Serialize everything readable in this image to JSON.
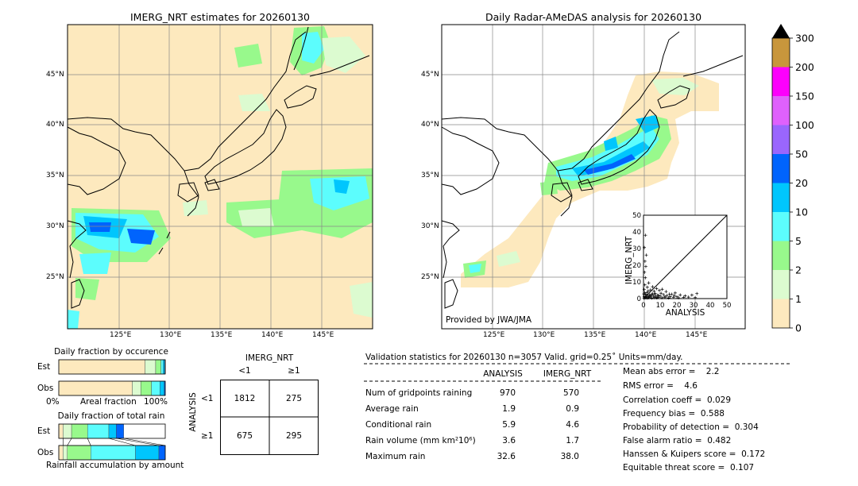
{
  "left_map": {
    "title": "IMERG_NRT estimates for 20260130",
    "lat_labels": [
      "45°N",
      "40°N",
      "35°N",
      "30°N",
      "25°N"
    ],
    "lon_labels": [
      "125°E",
      "130°E",
      "135°E",
      "140°E",
      "145°E"
    ]
  },
  "right_map": {
    "title": "Daily Radar-AMeDAS analysis for 20260130",
    "lat_labels": [
      "45°N",
      "40°N",
      "35°N",
      "30°N",
      "25°N"
    ],
    "lon_labels": [
      "125°E",
      "130°E",
      "135°E",
      "140°E",
      "145°E"
    ],
    "credit": "Provided by JWA/JMA"
  },
  "colorbar": {
    "levels": [
      "0",
      "1",
      "2",
      "5",
      "10",
      "20",
      "50",
      "100",
      "150",
      "200",
      "300"
    ],
    "colors": [
      "#fde9be",
      "#dcfbd0",
      "#98f98c",
      "#5cfdfd",
      "#00c6fd",
      "#0064fd",
      "#9a66fd",
      "#df61fc",
      "#fc00fc",
      "#c8963c"
    ]
  },
  "scatter": {
    "xlabel": "ANALYSIS",
    "ylabel": "IMERG_NRT",
    "ticks": [
      "0",
      "10",
      "20",
      "30",
      "40",
      "50"
    ]
  },
  "fraction_occurrence": {
    "title": "Daily fraction by occurence",
    "rows": [
      "Est",
      "Obs"
    ],
    "axis_left": "0%",
    "axis_mid": "Areal fraction",
    "axis_right": "100%"
  },
  "fraction_rain": {
    "title": "Daily fraction of total rain",
    "rows": [
      "Est",
      "Obs"
    ],
    "footer": "Rainfall accumulation by amount"
  },
  "contingency": {
    "col_title": "IMERG_NRT",
    "col_labels": [
      "<1",
      "≥1"
    ],
    "row_title": "ANALYSIS",
    "row_labels": [
      "<1",
      "≥1"
    ],
    "cells": [
      [
        "1812",
        "275"
      ],
      [
        "675",
        "295"
      ]
    ]
  },
  "validation": {
    "header": "Validation statistics for 20260130  n=3057 Valid. grid=0.25˚ Units=mm/day.",
    "col_headers": [
      "ANALYSIS",
      "IMERG_NRT"
    ],
    "rows": [
      {
        "label": "Num of gridpoints raining",
        "analysis": "970",
        "imerg": "570"
      },
      {
        "label": "Average rain",
        "analysis": "1.9",
        "imerg": "0.9"
      },
      {
        "label": "Conditional rain",
        "analysis": "5.9",
        "imerg": "4.6"
      },
      {
        "label": "Rain volume (mm km²10⁶)",
        "analysis": "3.6",
        "imerg": "1.7"
      },
      {
        "label": "Maximum rain",
        "analysis": "32.6",
        "imerg": "38.0"
      }
    ],
    "scores": [
      "Mean abs error =    2.2",
      "RMS error =    4.6",
      "Correlation coeff =  0.029",
      "Frequency bias =  0.588",
      "Probability of detection =  0.304",
      "False alarm ratio =  0.482",
      "Hanssen & Kuipers score =  0.172",
      "Equitable threat score =  0.107"
    ]
  },
  "chart_data": [
    {
      "type": "scatter",
      "xlabel": "ANALYSIS",
      "ylabel": "IMERG_NRT",
      "xlim": [
        0,
        50
      ],
      "ylim": [
        0,
        50
      ],
      "points": [
        [
          0.3,
          0.2
        ],
        [
          0.5,
          1.2
        ],
        [
          1,
          0.4
        ],
        [
          1.2,
          2.5
        ],
        [
          1.5,
          0.8
        ],
        [
          2,
          3.5
        ],
        [
          2.5,
          1.1
        ],
        [
          3,
          0.5
        ],
        [
          3.5,
          2.2
        ],
        [
          4,
          0.9
        ],
        [
          4.5,
          1.6
        ],
        [
          5,
          0.3
        ],
        [
          5.5,
          2.8
        ],
        [
          6,
          1.4
        ],
        [
          6.5,
          0.6
        ],
        [
          7,
          3.1
        ],
        [
          7.5,
          1.0
        ],
        [
          8,
          0.4
        ],
        [
          8.5,
          2.0
        ],
        [
          9,
          0.7
        ],
        [
          10,
          1.5
        ],
        [
          11,
          0.5
        ],
        [
          12,
          2.4
        ],
        [
          13,
          0.9
        ],
        [
          14,
          1.8
        ],
        [
          15,
          0.4
        ],
        [
          16,
          1.2
        ],
        [
          17,
          2.6
        ],
        [
          18,
          0.8
        ],
        [
          19,
          3.4
        ],
        [
          20,
          1.1
        ],
        [
          21,
          0.5
        ],
        [
          22,
          2.2
        ],
        [
          24,
          0.7
        ],
        [
          25,
          1.6
        ],
        [
          27,
          0.9
        ],
        [
          29,
          2.1
        ],
        [
          31,
          0.6
        ],
        [
          32,
          3.0
        ],
        [
          0.4,
          5.5
        ],
        [
          0.8,
          8.2
        ],
        [
          1.1,
          12.5
        ],
        [
          0.6,
          15.8
        ],
        [
          1.4,
          19.2
        ],
        [
          0.9,
          22.4
        ],
        [
          1.7,
          26.1
        ],
        [
          0.5,
          30.6
        ],
        [
          1.2,
          38.0
        ],
        [
          2.3,
          6.8
        ],
        [
          3.1,
          9.4
        ],
        [
          2.8,
          4.6
        ],
        [
          4.2,
          5.2
        ],
        [
          5.4,
          7.1
        ],
        [
          6.3,
          4.4
        ],
        [
          7.8,
          6.0
        ],
        [
          9.5,
          4.9
        ],
        [
          11.2,
          5.6
        ],
        [
          13.5,
          4.2
        ],
        [
          0.2,
          2.8
        ],
        [
          0.7,
          3.6
        ],
        [
          1.8,
          1.9
        ],
        [
          2.2,
          0.3
        ],
        [
          3.3,
          1.3
        ],
        [
          4.8,
          2.6
        ],
        [
          6.8,
          2.3
        ],
        [
          8.8,
          1.9
        ],
        [
          10.5,
          3.2
        ],
        [
          12.5,
          0.9
        ],
        [
          15.5,
          2.7
        ],
        [
          18.5,
          1.8
        ]
      ]
    },
    {
      "type": "bar",
      "title": "Daily fraction by occurence",
      "categories": [
        "Est",
        "Obs"
      ],
      "series": [
        {
          "values": [
            0.81,
            0.69
          ]
        },
        {
          "values": [
            0.1,
            0.08
          ]
        },
        {
          "values": [
            0.05,
            0.1
          ]
        },
        {
          "values": [
            0.02,
            0.08
          ]
        },
        {
          "values": [
            0.015,
            0.04
          ]
        },
        {
          "values": [
            0.005,
            0.01
          ]
        }
      ]
    },
    {
      "type": "bar",
      "title": "Daily fraction of total rain",
      "categories": [
        "Est",
        "Obs"
      ],
      "series": [
        {
          "values": [
            0.04,
            0.04
          ]
        },
        {
          "values": [
            0.08,
            0.04
          ]
        },
        {
          "values": [
            0.15,
            0.22
          ]
        },
        {
          "values": [
            0.2,
            0.42
          ]
        },
        {
          "values": [
            0.07,
            0.22
          ]
        },
        {
          "values": [
            0.07,
            0.06
          ]
        }
      ]
    }
  ]
}
